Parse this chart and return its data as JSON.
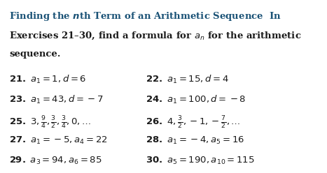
{
  "bg_color": "#ffffff",
  "title_color": "#1a5276",
  "text_color": "#1a1a1a",
  "title_line1": "Finding the nth Term of an Arithmetic Sequence  In",
  "title_line2": "Exercises 21–30, find a formula for a",
  "title_line2b": "n",
  "title_line2c": " for the arithmetic",
  "title_line3": "sequence.",
  "exercises": [
    {
      "num": "21.",
      "left": true,
      "col": 0.03,
      "row": 0.415,
      "text": "21. $a_1 = 1, d = 6$"
    },
    {
      "num": "22.",
      "left": false,
      "col": 0.52,
      "row": 0.415,
      "text": "22. $a_1 = 15, d = 4$"
    },
    {
      "num": "23.",
      "left": true,
      "col": 0.03,
      "row": 0.535,
      "text": "23. $a_1 = 43, d = -7$"
    },
    {
      "num": "24.",
      "left": false,
      "col": 0.52,
      "row": 0.535,
      "text": "24. $a_1 = 100, d = -8$"
    },
    {
      "num": "25.",
      "left": true,
      "col": 0.03,
      "row": 0.655,
      "text": "25. $3, \\frac{9}{4}, \\frac{3}{2}, \\frac{3}{4}, 0, \\ldots$"
    },
    {
      "num": "26.",
      "left": false,
      "col": 0.52,
      "row": 0.655,
      "text": "26. $4, \\frac{3}{2}, -1, -\\frac{7}{2}, \\ldots$"
    },
    {
      "num": "27.",
      "left": true,
      "col": 0.03,
      "row": 0.775,
      "text": "27. $a_1 = -5, a_4 = 22$"
    },
    {
      "num": "28.",
      "left": false,
      "col": 0.52,
      "row": 0.775,
      "text": "28. $a_1 = -4, a_5 = 16$"
    },
    {
      "num": "29.",
      "left": true,
      "col": 0.03,
      "row": 0.895,
      "text": "29. $a_3 = 94, a_6 = 85$"
    },
    {
      "num": "30.",
      "left": false,
      "col": 0.52,
      "row": 0.895,
      "text": "30. $a_5 = 190, a_{10} = 115$"
    }
  ]
}
